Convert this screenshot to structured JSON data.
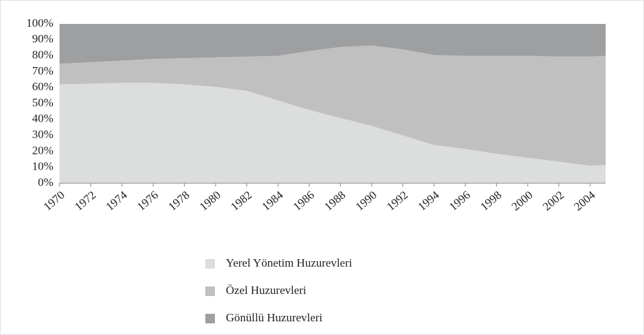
{
  "chart_data": {
    "type": "stacked_area",
    "x": [
      1970,
      1972,
      1974,
      1976,
      1978,
      1980,
      1982,
      1984,
      1986,
      1988,
      1990,
      1992,
      1994,
      1996,
      1998,
      2000,
      2002,
      2004,
      2005
    ],
    "series": [
      {
        "name": "Yerel Yönetim Huzurevleri",
        "color": "#dcdddd",
        "values": [
          62,
          62.5,
          63,
          63,
          62,
          60.5,
          58,
          52,
          46,
          41,
          36,
          30,
          24,
          21.5,
          18.5,
          16,
          13.5,
          11,
          11.5
        ]
      },
      {
        "name": "Özel Huzurevleri",
        "color": "#c0c0c0",
        "values": [
          13,
          13.5,
          14,
          15,
          16.5,
          18.5,
          21.5,
          28,
          37,
          44.5,
          50.5,
          54,
          56.5,
          58.5,
          61.5,
          64,
          66,
          68.5,
          68.5
        ]
      },
      {
        "name": "Gönüllü Huzurevleri",
        "color": "#9d9fa1",
        "values": [
          25,
          24,
          23,
          22,
          21.5,
          21,
          20.5,
          20,
          17,
          14.5,
          13.5,
          16,
          19.5,
          20,
          20,
          20,
          20.5,
          20.5,
          20
        ]
      }
    ],
    "xlim": [
      1970,
      2005
    ],
    "xticks": [
      1970,
      1972,
      1974,
      1976,
      1978,
      1980,
      1982,
      1984,
      1986,
      1988,
      1990,
      1992,
      1994,
      1996,
      1998,
      2000,
      2002,
      2004
    ],
    "ylim": [
      0,
      100
    ],
    "yticks": [
      {
        "value": 0,
        "label": "0%"
      },
      {
        "value": 10,
        "label": "10%"
      },
      {
        "value": 20,
        "label": "20%"
      },
      {
        "value": 30,
        "label": "30%"
      },
      {
        "value": 40,
        "label": "40%"
      },
      {
        "value": 50,
        "label": "50%"
      },
      {
        "value": 60,
        "label": "60%"
      },
      {
        "value": 70,
        "label": "70%"
      },
      {
        "value": 80,
        "label": "80%"
      },
      {
        "value": 90,
        "label": "90%"
      },
      {
        "value": 100,
        "label": "100%"
      }
    ],
    "grid": false
  }
}
